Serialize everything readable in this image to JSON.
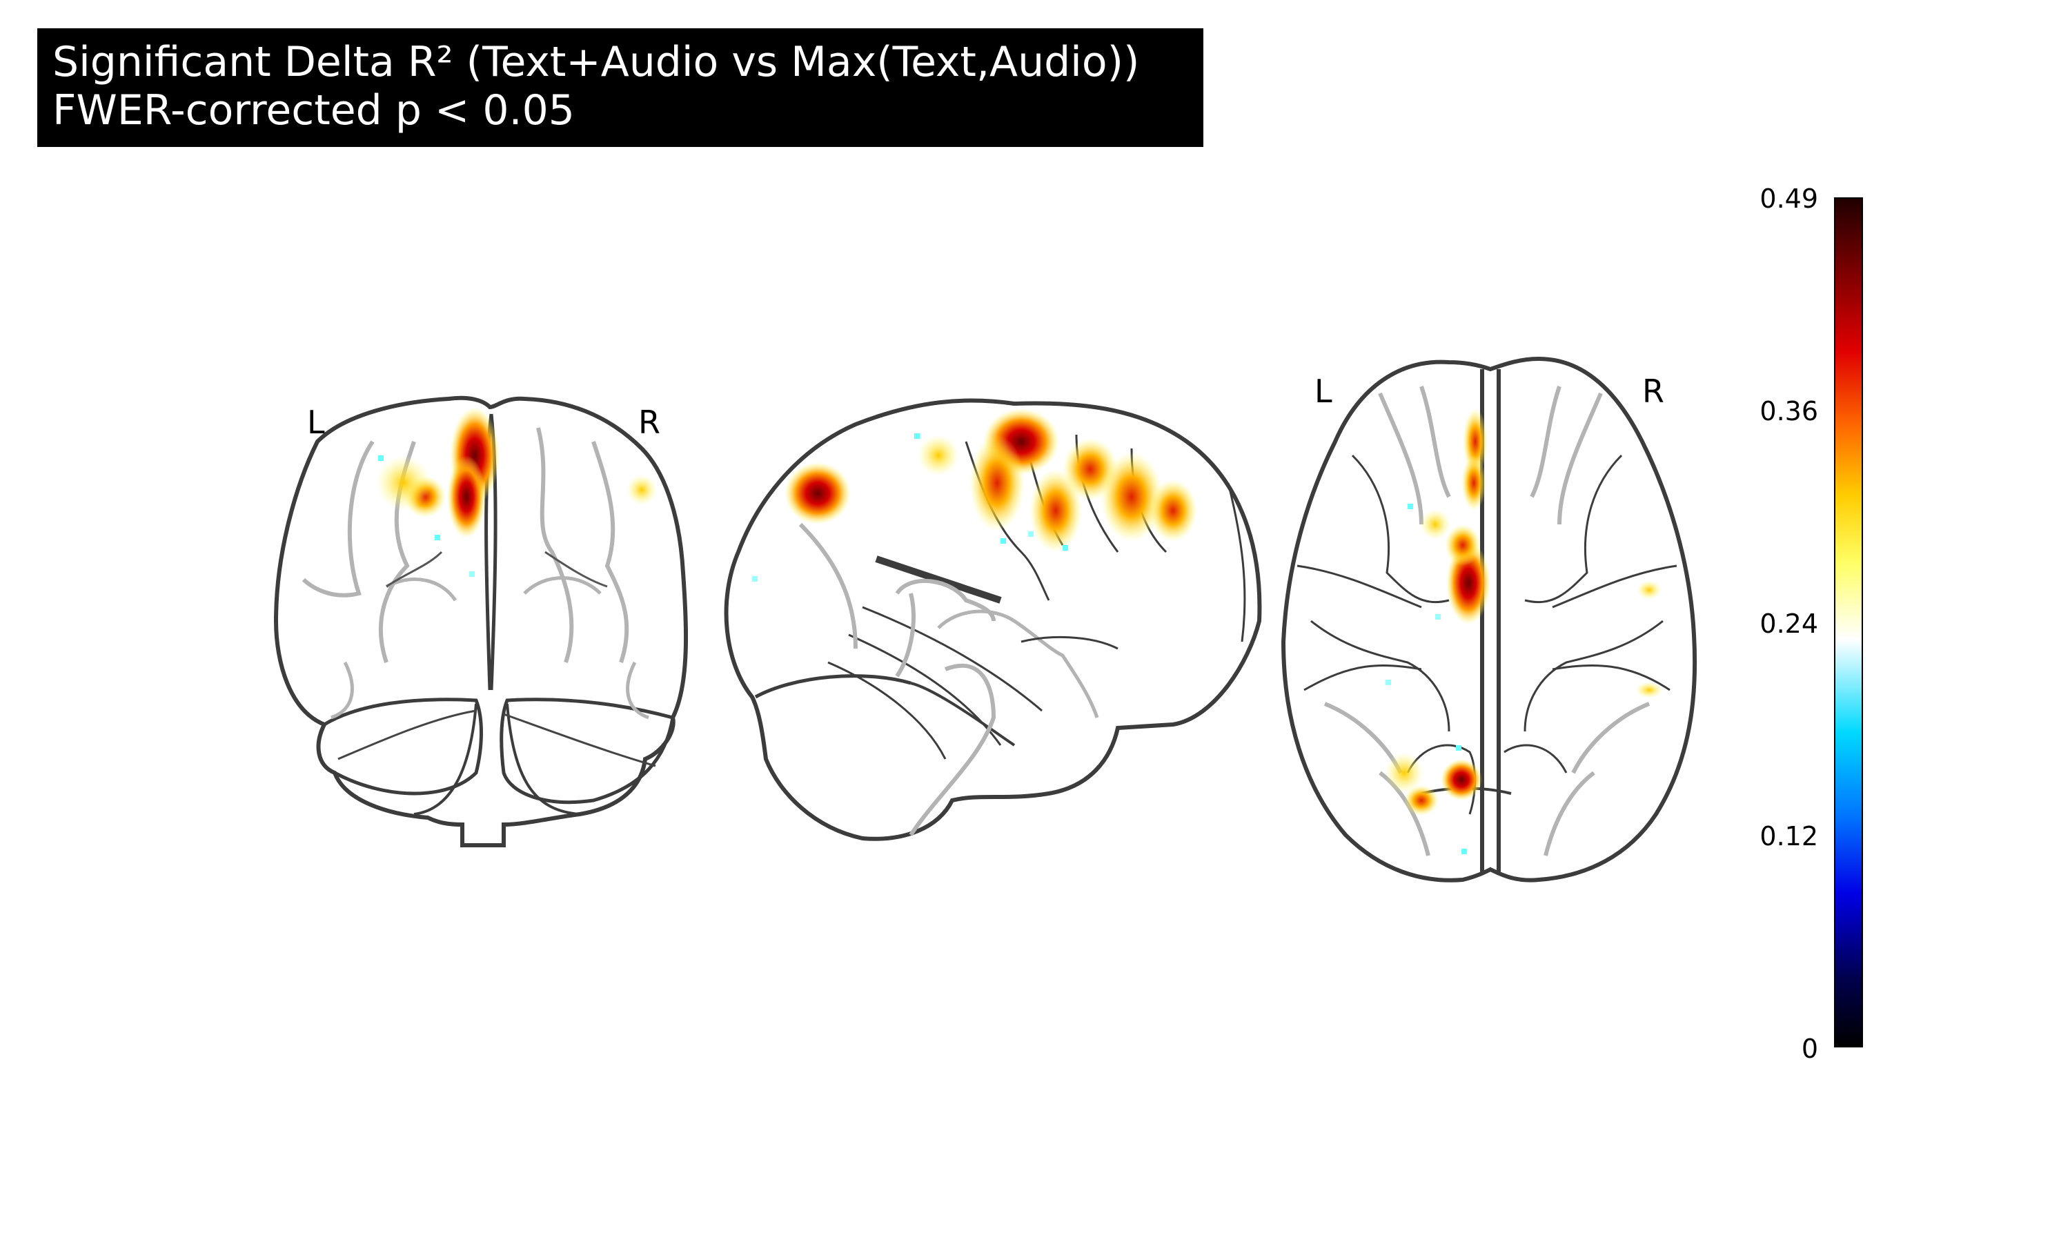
{
  "title": {
    "line1": "Significant Delta R² (Text+Audio vs Max(Text,Audio))",
    "line2": "FWER-corrected p < 0.05"
  },
  "views": {
    "coronal": {
      "left_label": "L",
      "right_label": "R"
    },
    "axial": {
      "left_label": "L",
      "right_label": "R"
    }
  },
  "colorbar": {
    "ticks": [
      "0.49",
      "0.36",
      "0.24",
      "0.12",
      "0"
    ],
    "colormap": [
      "#000000",
      "#0000e6",
      "#00d9ff",
      "#ffffff",
      "#ffcc00",
      "#ff6a00",
      "#e00000",
      "#200000"
    ]
  }
}
